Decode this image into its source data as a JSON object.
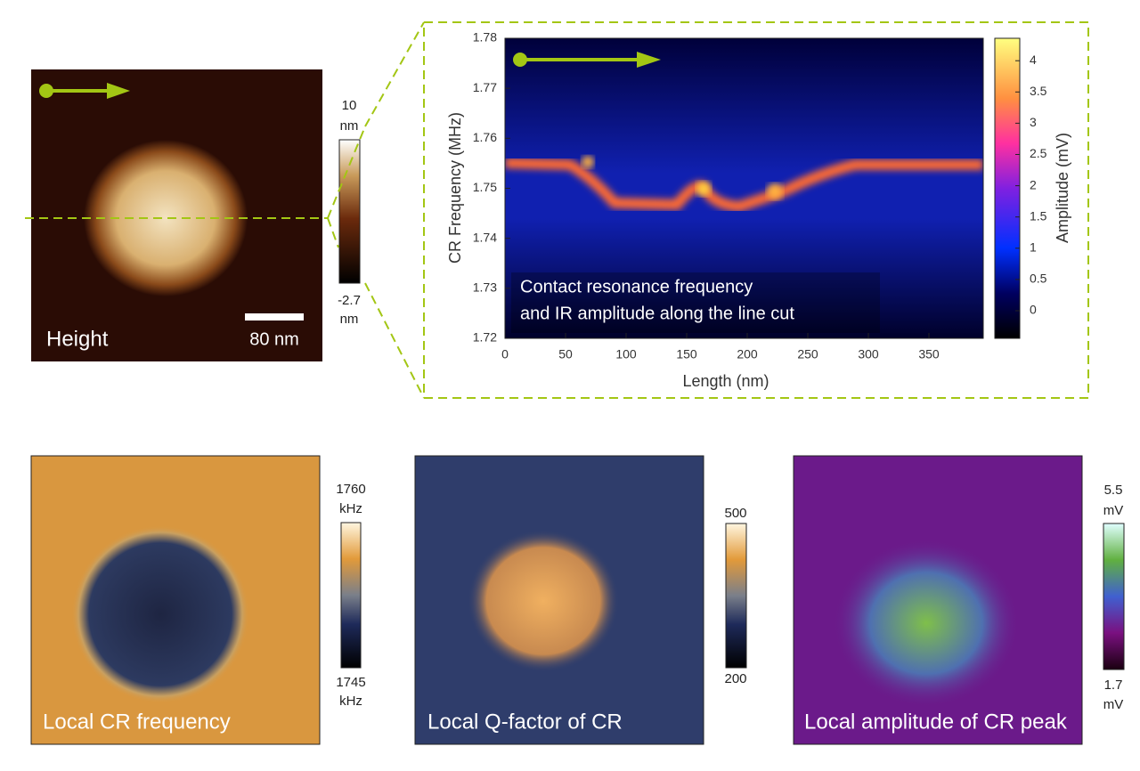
{
  "height_panel": {
    "label": "Height",
    "scale_bar": "80 nm",
    "colorbar": {
      "max": "10",
      "max_unit": "nm",
      "min": "-2.7",
      "min_unit": "nm"
    }
  },
  "line_cut_plot": {
    "annotation": [
      "Contact resonance frequency",
      "and IR amplitude along the line cut"
    ],
    "x_label": "Length (nm)",
    "y_label": "CR Frequency (MHz)",
    "colorbar_label": "Amplitude (mV)",
    "x_ticks": [
      "0",
      "50",
      "100",
      "150",
      "200",
      "250",
      "300",
      "350"
    ],
    "y_ticks": [
      "1.72",
      "1.73",
      "1.74",
      "1.75",
      "1.76",
      "1.77",
      "1.78"
    ],
    "colorbar_ticks": [
      "0",
      "0.5",
      "1",
      "1.5",
      "2",
      "2.5",
      "3",
      "3.5",
      "4"
    ]
  },
  "bottom_panels": [
    {
      "label": "Local CR frequency",
      "colorbar": {
        "max": "1760",
        "max_unit": "kHz",
        "min": "1745",
        "min_unit": "kHz"
      }
    },
    {
      "label": "Local Q-factor of CR",
      "colorbar": {
        "max": "500",
        "min": "200"
      }
    },
    {
      "label": "Local amplitude of CR peak",
      "colorbar": {
        "max": "5.5",
        "max_unit": "mV",
        "min": "1.7",
        "min_unit": "mV"
      }
    }
  ]
}
